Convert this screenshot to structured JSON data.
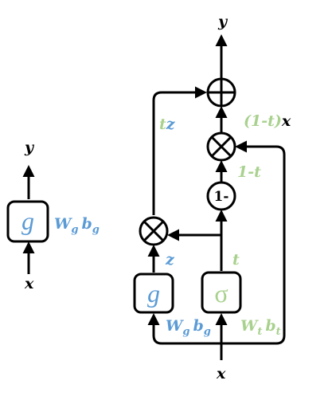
{
  "colors": {
    "black": "#000000",
    "blue": "#5b9bd5",
    "green": "#a9d18e"
  },
  "left": {
    "input": "x",
    "output": "y",
    "gate": "g",
    "w_base": "W",
    "w_sub": "g",
    "b_base": "b",
    "b_sub": "g"
  },
  "right": {
    "input": "x",
    "output": "y",
    "gate_g": "g",
    "gate_sigma": "σ",
    "z_label": "z",
    "t_label": "t",
    "tz_t": "t",
    "tz_z": "z",
    "one_minus": "1-",
    "one_minus_t": "1-t",
    "carry_open": "(1-",
    "carry_t": "t",
    "carry_close": ")",
    "carry_x": "x",
    "wg_w": "W",
    "wg_sub": "g",
    "wg_b": "b",
    "wg_bsub": "g",
    "wt_w": "W",
    "wt_sub": "t",
    "wt_b": "b",
    "wt_bsub": "t"
  },
  "icons": {
    "multiply": "circle-times-icon",
    "add": "circle-plus-icon"
  }
}
